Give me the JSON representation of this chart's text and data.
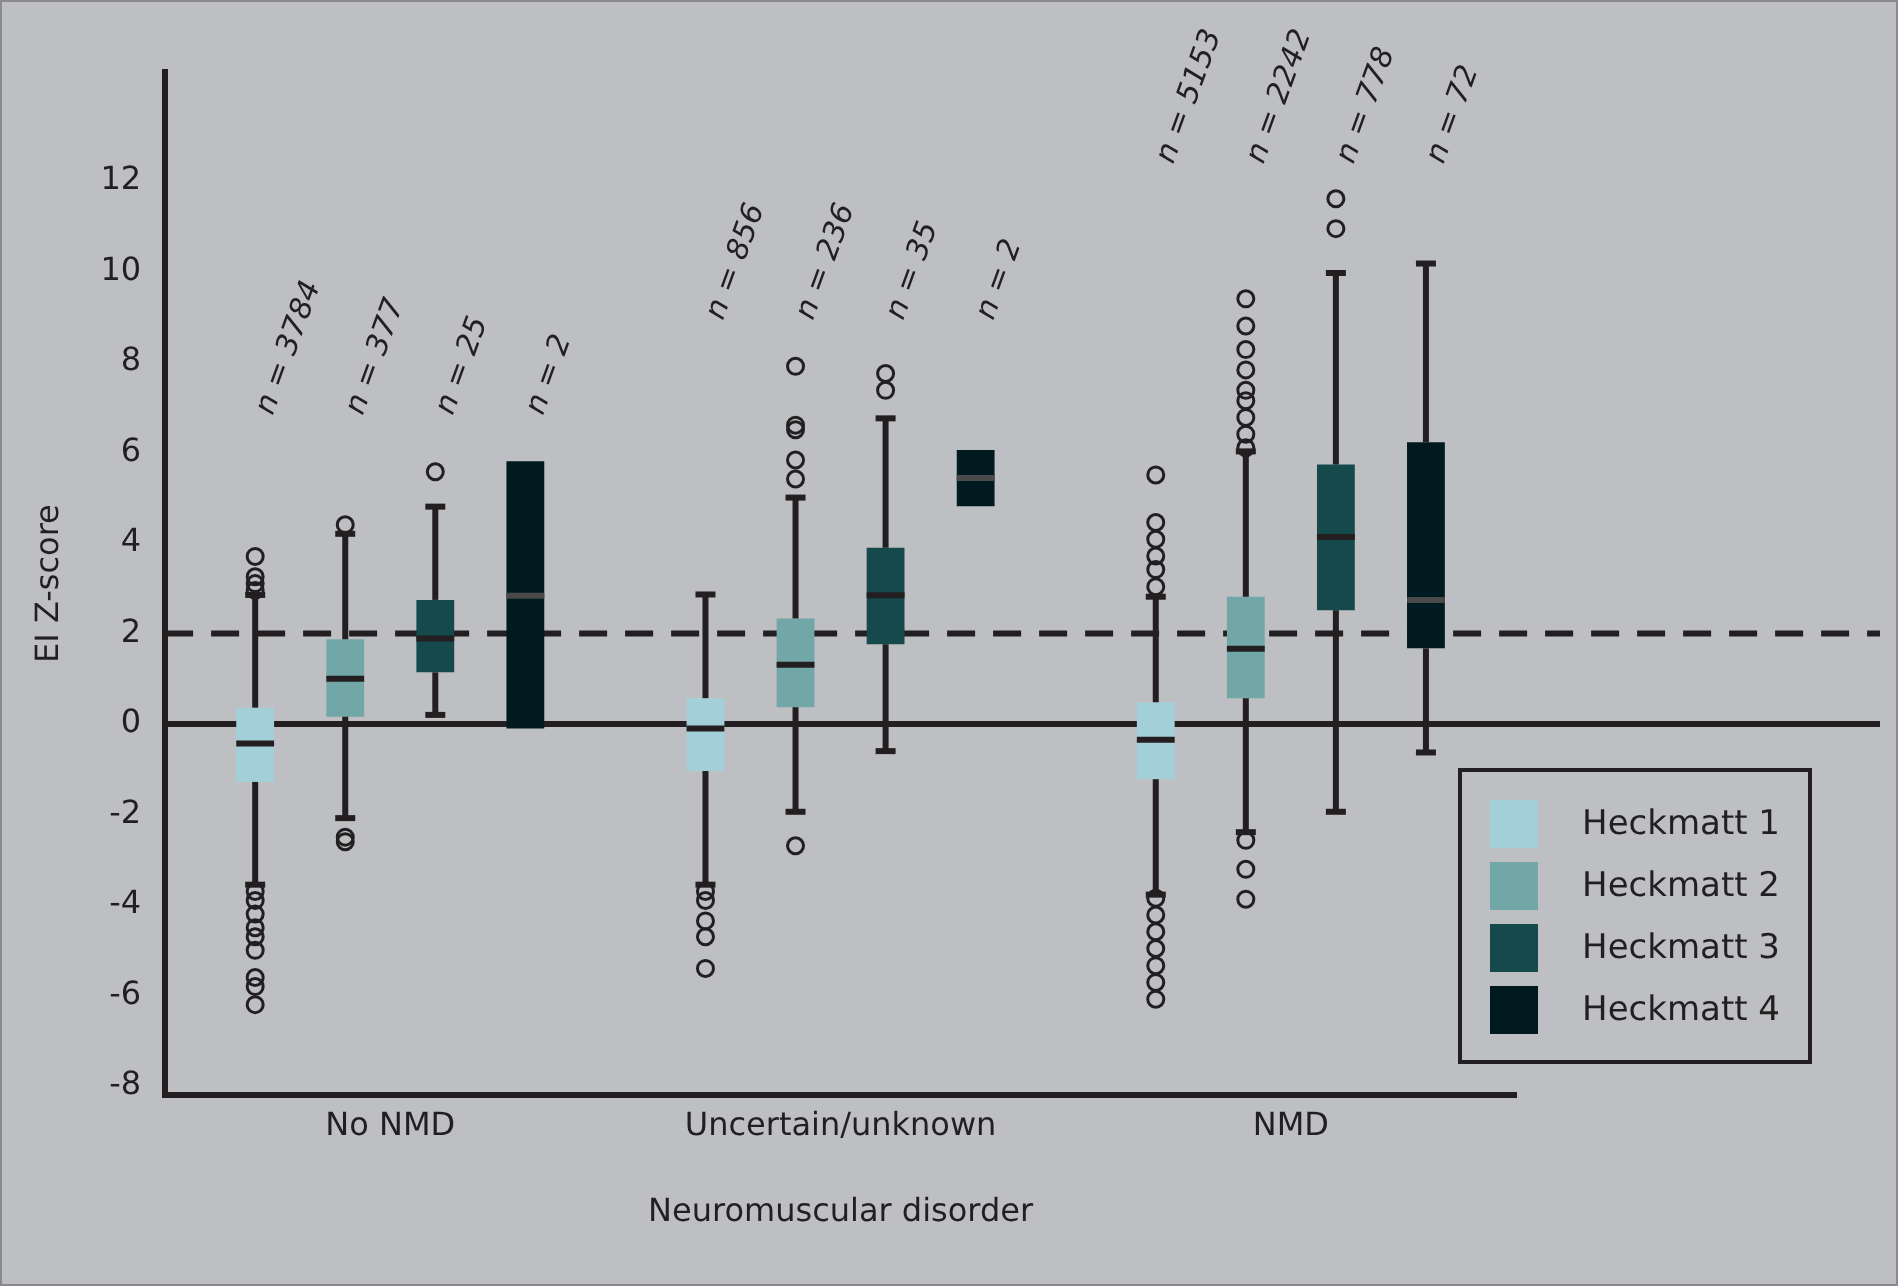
{
  "chart_data": {
    "type": "box",
    "xlabel": "Neuromuscular disorder",
    "ylabel": "EI Z-score",
    "categories": [
      "No NMD",
      "Uncertain/unknown",
      "NMD"
    ],
    "ylim": [
      -8.2,
      14.4
    ],
    "yticks": [
      -8,
      -6,
      -4,
      -2,
      0,
      2,
      4,
      6,
      8,
      10,
      12
    ],
    "grid": false,
    "legend": "bottom right",
    "series": [
      {
        "name": "Heckmatt 1",
        "color": "#a3d0d8",
        "boxes": [
          {
            "low": -3.55,
            "q1": -1.28,
            "median": -0.43,
            "q3": 0.36,
            "high": 2.85,
            "outliers": [
              3.7,
              3.25,
              3.1,
              2.95,
              -3.7,
              -3.9,
              -4.2,
              -4.5,
              -4.7,
              -5.0,
              -5.6,
              -5.8,
              -6.2
            ]
          },
          {
            "low": -3.55,
            "q1": -1.04,
            "median": -0.1,
            "q3": 0.57,
            "high": 2.86,
            "outliers": [
              -3.7,
              -3.9,
              -4.35,
              -4.7,
              -5.4
            ]
          },
          {
            "low": -3.77,
            "q1": -1.22,
            "median": -0.35,
            "q3": 0.48,
            "high": 2.81,
            "outliers": [
              3.03,
              3.41,
              3.71,
              4.08,
              4.45,
              5.5,
              -3.85,
              -4.22,
              -4.59,
              -4.96,
              -5.34,
              -5.71,
              -6.08
            ]
          }
        ]
      },
      {
        "name": "Heckmatt 2",
        "color": "#72a7a8",
        "boxes": [
          {
            "low": -2.08,
            "q1": 0.16,
            "median": 1.0,
            "q3": 1.87,
            "high": 4.2,
            "outliers": [
              4.4,
              -2.5,
              -2.6
            ]
          },
          {
            "low": -1.94,
            "q1": 0.37,
            "median": 1.31,
            "q3": 2.33,
            "high": 5.0,
            "outliers": [
              7.9,
              6.6,
              6.5,
              5.83,
              5.41,
              -2.69
            ]
          },
          {
            "low": -2.39,
            "q1": 0.57,
            "median": 1.66,
            "q3": 2.81,
            "high": 6.02,
            "outliers": [
              6.1,
              6.4,
              6.77,
              7.14,
              7.37,
              7.82,
              8.27,
              8.79,
              9.39,
              -2.57,
              -3.21,
              -3.87
            ]
          }
        ]
      },
      {
        "name": "Heckmatt 3",
        "color": "#15494b",
        "boxes": [
          {
            "low": 0.2,
            "q1": 1.14,
            "median": 1.89,
            "q3": 2.74,
            "high": 4.8,
            "outliers": [
              5.57
            ]
          },
          {
            "low": -0.6,
            "q1": 1.76,
            "median": 2.84,
            "q3": 3.89,
            "high": 6.75,
            "outliers": [
              7.74,
              7.37
            ]
          },
          {
            "low": -1.94,
            "q1": 2.51,
            "median": 4.13,
            "q3": 5.73,
            "high": 9.96,
            "outliers": [
              10.94,
              11.6
            ]
          }
        ]
      },
      {
        "name": "Heckmatt 4",
        "color": "#011a20",
        "boxes": [
          {
            "low": -0.1,
            "q1": -0.1,
            "median": 2.83,
            "q3": 5.8,
            "high": 5.8
          },
          {
            "low": 4.81,
            "q1": 4.81,
            "median": 5.43,
            "q3": 6.05,
            "high": 6.05
          },
          {
            "low": -0.63,
            "q1": 1.67,
            "median": 2.74,
            "q3": 6.22,
            "high": 10.17
          }
        ]
      }
    ],
    "ref_lines": [
      {
        "axis": "y",
        "value": 0,
        "line_style": "solid"
      },
      {
        "axis": "y",
        "value": 2,
        "line_style": "dashed"
      }
    ],
    "annotations": [
      "n = 3784",
      "n = 377",
      "n = 25",
      "n = 2",
      "n = 856",
      "n = 236",
      "n = 35",
      "n = 2",
      "n = 5153",
      "n = 2242",
      "n = 778",
      "n = 72"
    ]
  }
}
